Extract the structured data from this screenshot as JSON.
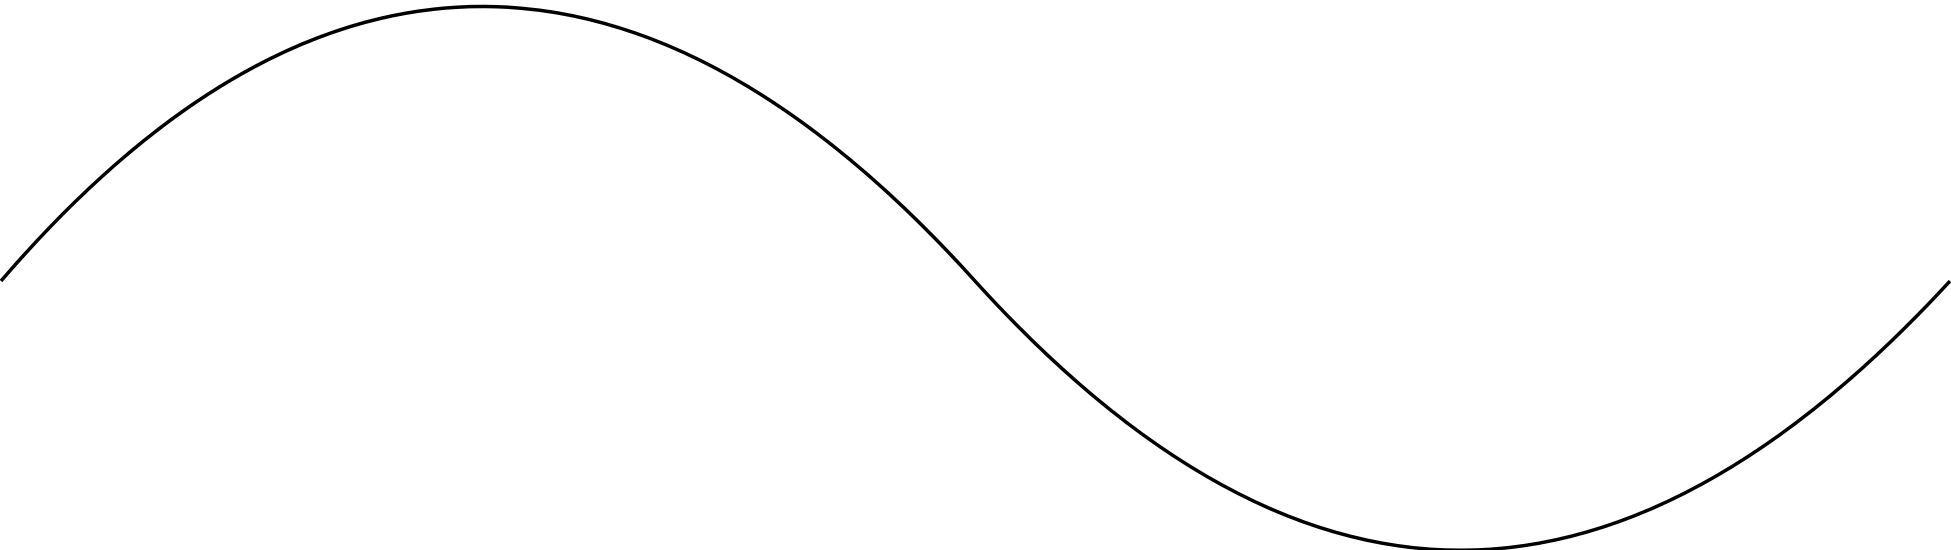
{
  "diagram": {
    "shape": "wave",
    "description_free": true,
    "stroke_color": "#000000",
    "background_color": "#ffffff"
  }
}
